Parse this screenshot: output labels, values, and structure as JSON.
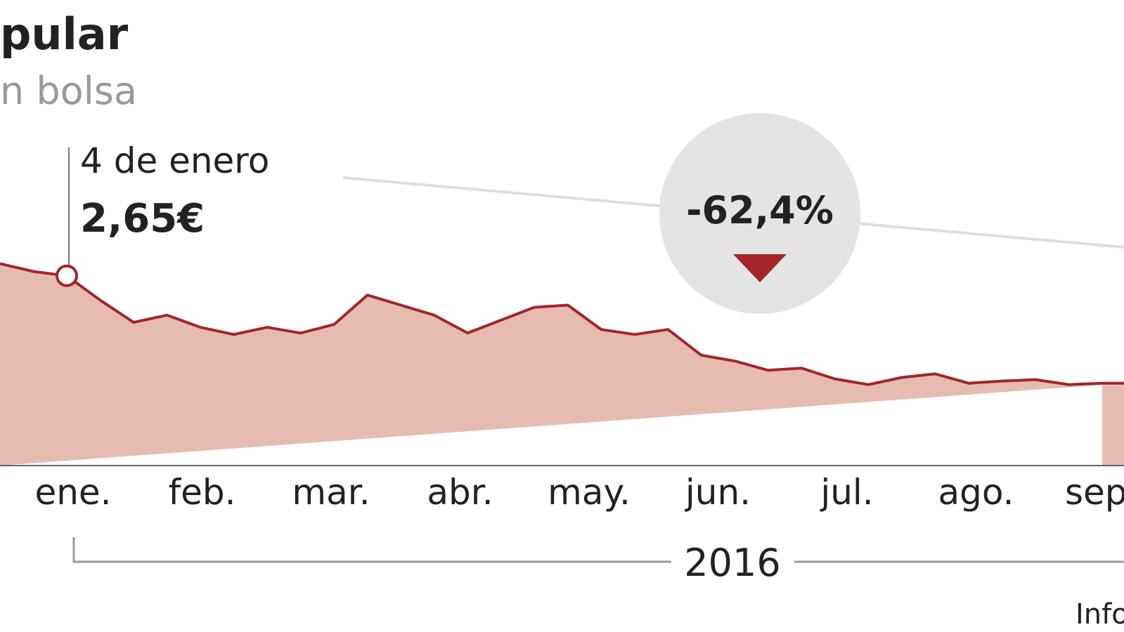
{
  "chart_data": {
    "type": "area",
    "title": "pular",
    "subtitle": "n bolsa",
    "annotation_date": "4 de enero",
    "annotation_value": "2,65€",
    "change_label": "-62,4%",
    "x_labels": [
      "ene.",
      "feb.",
      "mar.",
      "abr.",
      "may.",
      "jun.",
      "jul.",
      "ago.",
      "sep"
    ],
    "year": "2016",
    "source": "Info",
    "color": "#a3262a",
    "fill": "#e6bcb0",
    "values": [
      2.82,
      2.71,
      2.65,
      2.31,
      2.0,
      2.1,
      1.93,
      1.83,
      1.93,
      1.85,
      1.97,
      2.38,
      2.24,
      2.1,
      1.85,
      2.03,
      2.21,
      2.24,
      1.9,
      1.83,
      1.9,
      1.54,
      1.46,
      1.33,
      1.36,
      1.21,
      1.13,
      1.23,
      1.28,
      1.15,
      1.18,
      1.2,
      1.13,
      1.15
    ],
    "ylim": [
      0,
      6.5
    ]
  }
}
